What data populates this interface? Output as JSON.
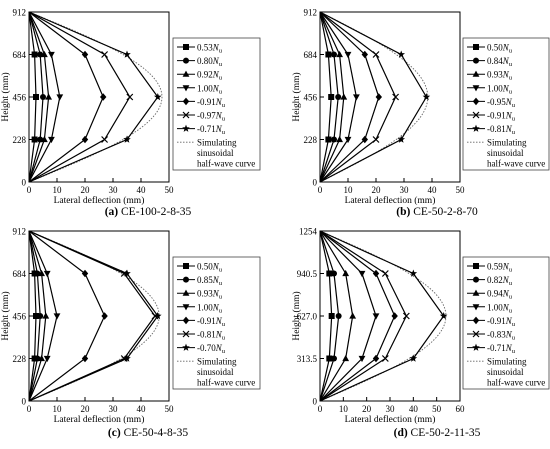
{
  "legend_caption": [
    "Simulating",
    "sinusoidal",
    "half-wave curve"
  ],
  "colors": {
    "line": "#000000",
    "simulation": "#666666",
    "frame": "#444444",
    "background": "#ffffff"
  },
  "chart_data": [
    {
      "type": "line",
      "caption_label": "(a)",
      "caption_text": "CE-100-2-8-35",
      "xlabel": "Lateral deflection (mm)",
      "ylabel": "Height (mm)",
      "xlim": [
        0,
        50
      ],
      "ylim": [
        0,
        912
      ],
      "x_ticks": [
        "0",
        "10",
        "20",
        "30",
        "40",
        "50"
      ],
      "y_ticks": [
        "0",
        "228",
        "456",
        "684",
        "912"
      ],
      "heights": [
        0,
        228,
        456,
        684,
        912
      ],
      "series": [
        {
          "name": "0.53",
          "sign": "",
          "marker": "square",
          "values": [
            0,
            2,
            2.5,
            2,
            0
          ]
        },
        {
          "name": "0.80",
          "sign": "",
          "marker": "circle",
          "values": [
            0,
            4,
            5,
            4,
            0
          ]
        },
        {
          "name": "0.92",
          "sign": "",
          "marker": "triangle",
          "values": [
            0,
            5.5,
            7,
            5.5,
            0
          ]
        },
        {
          "name": "1.00",
          "sign": "",
          "marker": "tridown",
          "values": [
            0,
            8,
            11,
            8,
            0
          ]
        },
        {
          "name": "0.91",
          "sign": "-",
          "marker": "diamond",
          "values": [
            0,
            20,
            26.5,
            20,
            0
          ]
        },
        {
          "name": "0.97",
          "sign": "-",
          "marker": "x",
          "values": [
            0,
            27,
            36,
            27,
            0
          ]
        },
        {
          "name": "0.71",
          "sign": "-",
          "marker": "star",
          "values": [
            0,
            35,
            46,
            35,
            0
          ]
        }
      ],
      "simulation": {
        "peak_x": 47.5
      }
    },
    {
      "type": "line",
      "caption_label": "(b)",
      "caption_text": "CE-50-2-8-70",
      "xlabel": "Lateral deflection (mm)",
      "ylabel": "Height (mm)",
      "xlim": [
        0,
        50
      ],
      "ylim": [
        0,
        912
      ],
      "x_ticks": [
        "0",
        "10",
        "20",
        "30",
        "40",
        "50"
      ],
      "y_ticks": [
        "0",
        "228",
        "456",
        "684",
        "912"
      ],
      "heights": [
        0,
        228,
        456,
        684,
        912
      ],
      "series": [
        {
          "name": "0.50",
          "sign": "",
          "marker": "square",
          "values": [
            0,
            3,
            4,
            3,
            0
          ]
        },
        {
          "name": "0.84",
          "sign": "",
          "marker": "circle",
          "values": [
            0,
            5,
            6.5,
            5,
            0
          ]
        },
        {
          "name": "0.93",
          "sign": "",
          "marker": "triangle",
          "values": [
            0,
            7,
            8.5,
            7,
            0
          ]
        },
        {
          "name": "1.00",
          "sign": "",
          "marker": "tridown",
          "values": [
            0,
            10,
            13,
            10,
            0
          ]
        },
        {
          "name": "0.95",
          "sign": "-",
          "marker": "diamond",
          "values": [
            0,
            16,
            21,
            16,
            0
          ]
        },
        {
          "name": "0.91",
          "sign": "-",
          "marker": "x",
          "values": [
            0,
            20,
            27,
            20,
            0
          ]
        },
        {
          "name": "0.81",
          "sign": "-",
          "marker": "star",
          "values": [
            0,
            29,
            38,
            29,
            0
          ]
        }
      ],
      "simulation": {
        "peak_x": 38.5
      }
    },
    {
      "type": "line",
      "caption_label": "(c)",
      "caption_text": "CE-50-4-8-35",
      "xlabel": "Lateral deflection (mm)",
      "ylabel": "Height (mm)",
      "xlim": [
        0,
        50
      ],
      "ylim": [
        0,
        912
      ],
      "x_ticks": [
        "0",
        "10",
        "20",
        "30",
        "40",
        "50"
      ],
      "y_ticks": [
        "0",
        "228",
        "456",
        "684",
        "912"
      ],
      "heights": [
        0,
        228,
        456,
        684,
        912
      ],
      "series": [
        {
          "name": "0.50",
          "sign": "",
          "marker": "square",
          "values": [
            0,
            2,
            2.5,
            2,
            0
          ]
        },
        {
          "name": "0.85",
          "sign": "",
          "marker": "circle",
          "values": [
            0,
            3,
            4,
            3,
            0
          ]
        },
        {
          "name": "0.93",
          "sign": "",
          "marker": "triangle",
          "values": [
            0,
            4.5,
            6,
            4.5,
            0
          ]
        },
        {
          "name": "1.00",
          "sign": "",
          "marker": "tridown",
          "values": [
            0,
            6.5,
            10,
            6.5,
            0
          ]
        },
        {
          "name": "0.91",
          "sign": "-",
          "marker": "diamond",
          "values": [
            0,
            20,
            27,
            20,
            0
          ]
        },
        {
          "name": "0.81",
          "sign": "-",
          "marker": "x",
          "values": [
            0,
            34,
            45,
            34,
            0
          ]
        },
        {
          "name": "0.70",
          "sign": "-",
          "marker": "star",
          "values": [
            0,
            35,
            46,
            35,
            0
          ]
        }
      ],
      "simulation": {
        "peak_x": 46.5
      }
    },
    {
      "type": "line",
      "caption_label": "(d)",
      "caption_text": "CE-50-2-11-35",
      "xlabel": "Lateral deflection (mm)",
      "ylabel": "Height (mm)",
      "xlim": [
        0,
        60
      ],
      "ylim": [
        0,
        1254
      ],
      "x_ticks": [
        "0",
        "10",
        "20",
        "30",
        "40",
        "50",
        "60"
      ],
      "y_ticks": [
        "0",
        "313.5",
        "627.0",
        "940.5",
        "1254"
      ],
      "heights": [
        0,
        313.5,
        627,
        940.5,
        1254
      ],
      "series": [
        {
          "name": "0.59",
          "sign": "",
          "marker": "square",
          "values": [
            0,
            4,
            5,
            4,
            0
          ]
        },
        {
          "name": "0.82",
          "sign": "",
          "marker": "circle",
          "values": [
            0,
            6,
            8,
            6,
            0
          ]
        },
        {
          "name": "0.94",
          "sign": "",
          "marker": "triangle",
          "values": [
            0,
            11,
            14,
            11,
            0
          ]
        },
        {
          "name": "1.00",
          "sign": "",
          "marker": "tridown",
          "values": [
            0,
            18,
            24,
            18,
            0
          ]
        },
        {
          "name": "0.91",
          "sign": "-",
          "marker": "diamond",
          "values": [
            0,
            24,
            32,
            24,
            0
          ]
        },
        {
          "name": "0.83",
          "sign": "-",
          "marker": "x",
          "values": [
            0,
            28,
            37,
            28,
            0
          ]
        },
        {
          "name": "0.71",
          "sign": "-",
          "marker": "star",
          "values": [
            0,
            40,
            53,
            40,
            0
          ]
        }
      ],
      "simulation": {
        "peak_x": 54
      }
    }
  ]
}
